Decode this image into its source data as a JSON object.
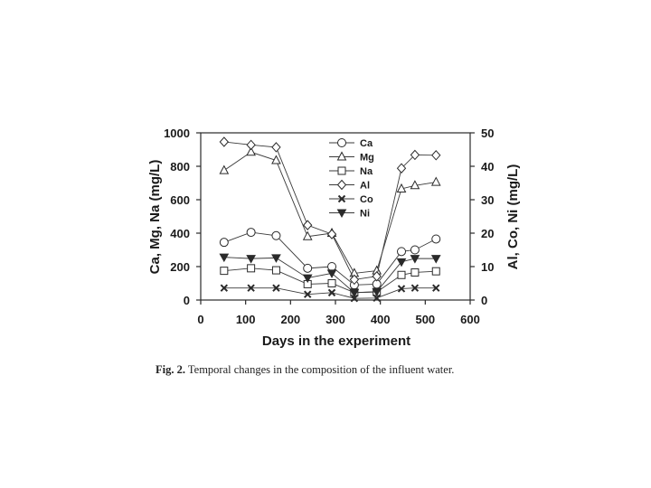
{
  "caption": {
    "label": "Fig. 2.",
    "text": "Temporal changes in the composition of the influent water."
  },
  "chart_data": {
    "type": "line",
    "xlabel": "Days in the experiment",
    "ylabel_left": "Ca, Mg, Na (mg/L)",
    "ylabel_right": "Al, Co, Ni (mg/L)",
    "xlim": [
      0,
      600
    ],
    "ylim_left": [
      0,
      1000
    ],
    "ylim_right": [
      0,
      50
    ],
    "x_ticks": [
      0,
      100,
      200,
      300,
      400,
      500,
      600
    ],
    "y_left_ticks": [
      0,
      200,
      400,
      600,
      800,
      1000
    ],
    "y_right_ticks": [
      0,
      10,
      20,
      30,
      40,
      50
    ],
    "grid": false,
    "legend_position": "top-center",
    "x": [
      52,
      112,
      168,
      238,
      292,
      342,
      392,
      447,
      477,
      524
    ],
    "series": [
      {
        "name": "Ca",
        "axis": "left",
        "marker": "circle-open",
        "values": [
          345,
          405,
          385,
          190,
          200,
          90,
          95,
          290,
          300,
          365
        ]
      },
      {
        "name": "Mg",
        "axis": "left",
        "marker": "triangle-up-open",
        "values": [
          775,
          885,
          835,
          380,
          400,
          160,
          175,
          665,
          685,
          705
        ]
      },
      {
        "name": "Na",
        "axis": "left",
        "marker": "square-open",
        "values": [
          175,
          190,
          178,
          95,
          100,
          45,
          48,
          150,
          165,
          172
        ]
      },
      {
        "name": "Al",
        "axis": "right",
        "marker": "diamond-open",
        "values": [
          47.3,
          46.4,
          45.7,
          22.4,
          19.7,
          6.1,
          7.1,
          39.4,
          43.4,
          43.3
        ]
      },
      {
        "name": "Co",
        "axis": "right",
        "marker": "x",
        "values": [
          3.6,
          3.6,
          3.6,
          1.7,
          2.2,
          0.5,
          0.6,
          3.4,
          3.6,
          3.6
        ]
      },
      {
        "name": "Ni",
        "axis": "right",
        "marker": "triangle-down-filled",
        "values": [
          12.8,
          12.4,
          12.6,
          6.6,
          8.0,
          2.2,
          2.5,
          11.4,
          12.4,
          12.4
        ]
      }
    ]
  }
}
